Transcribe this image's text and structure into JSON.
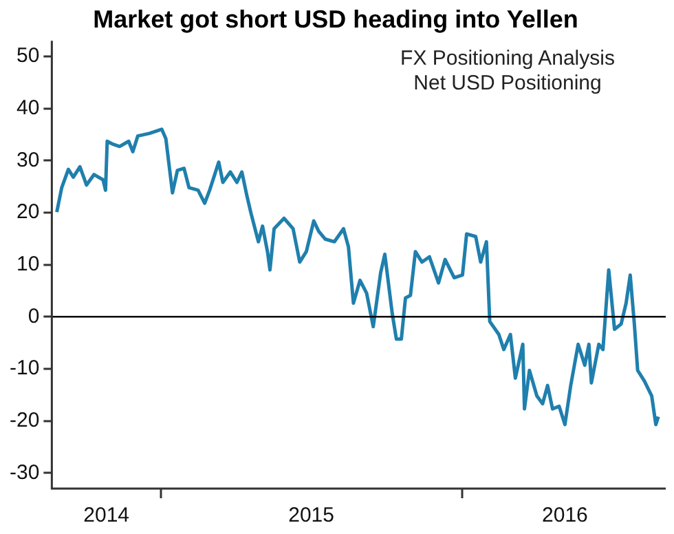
{
  "chart_data": {
    "type": "line",
    "title": "Market got short USD heading into Yellen",
    "annotations": [
      "FX Positioning Analysis",
      "Net USD Positioning"
    ],
    "x": [
      "2014-08-28",
      "2014-09-03",
      "2014-09-11",
      "2014-09-17",
      "2014-09-25",
      "2014-10-03",
      "2014-10-12",
      "2014-10-23",
      "2014-10-26",
      "2014-10-28",
      "2014-11-03",
      "2014-11-12",
      "2014-11-23",
      "2014-11-28",
      "2014-12-04",
      "2014-12-18",
      "2015-01-02",
      "2015-01-07",
      "2015-01-15",
      "2015-01-21",
      "2015-01-29",
      "2015-02-04",
      "2015-02-15",
      "2015-02-23",
      "2015-03-01",
      "2015-03-12",
      "2015-03-17",
      "2015-03-26",
      "2015-04-03",
      "2015-04-09",
      "2015-04-15",
      "2015-04-20",
      "2015-04-29",
      "2015-05-04",
      "2015-05-10",
      "2015-05-13",
      "2015-05-18",
      "2015-05-30",
      "2015-06-10",
      "2015-06-18",
      "2015-06-26",
      "2015-07-05",
      "2015-07-11",
      "2015-07-19",
      "2015-07-30",
      "2015-08-10",
      "2015-08-16",
      "2015-08-22",
      "2015-08-30",
      "2015-09-07",
      "2015-09-15",
      "2015-09-24",
      "2015-09-29",
      "2015-10-08",
      "2015-10-13",
      "2015-10-19",
      "2015-10-24",
      "2015-10-30",
      "2015-11-05",
      "2015-11-13",
      "2015-11-22",
      "2015-12-03",
      "2015-12-11",
      "2015-12-22",
      "2016-01-01",
      "2016-01-06",
      "2016-01-17",
      "2016-01-23",
      "2016-01-30",
      "2016-02-03",
      "2016-02-14",
      "2016-02-20",
      "2016-02-28",
      "2016-03-05",
      "2016-03-14",
      "2016-03-16",
      "2016-03-22",
      "2016-03-31",
      "2016-04-07",
      "2016-04-13",
      "2016-04-19",
      "2016-04-27",
      "2016-05-04",
      "2016-05-11",
      "2016-05-20",
      "2016-05-28",
      "2016-06-02",
      "2016-06-05",
      "2016-06-14",
      "2016-06-19",
      "2016-06-26",
      "2016-07-03",
      "2016-07-11",
      "2016-07-17",
      "2016-07-22",
      "2016-07-27",
      "2016-07-31",
      "2016-08-08",
      "2016-08-17",
      "2016-08-22",
      "2016-08-25"
    ],
    "series": [
      {
        "color": "#1f7fad",
        "values": [
          20.1,
          24.8,
          28.3,
          26.8,
          28.8,
          25.3,
          27.3,
          26.3,
          24.3,
          33.7,
          33.2,
          32.7,
          33.7,
          31.7,
          34.7,
          35.2,
          36.0,
          34.2,
          23.8,
          28.1,
          28.5,
          24.8,
          24.3,
          21.8,
          24.3,
          29.7,
          25.8,
          27.8,
          25.8,
          27.8,
          23.3,
          19.9,
          14.4,
          17.4,
          12.5,
          9.0,
          16.9,
          18.9,
          16.9,
          10.5,
          12.5,
          18.4,
          16.4,
          14.9,
          14.4,
          16.9,
          13.4,
          2.6,
          7.0,
          4.5,
          -1.9,
          8.5,
          12.0,
          0.6,
          -4.3,
          -4.3,
          3.6,
          4.1,
          12.5,
          10.5,
          11.5,
          6.5,
          11.0,
          7.5,
          8.0,
          15.9,
          15.4,
          10.5,
          14.4,
          -0.9,
          -3.4,
          -6.3,
          -3.4,
          -11.8,
          -5.3,
          -17.7,
          -10.3,
          -15.2,
          -16.7,
          -13.2,
          -17.7,
          -17.2,
          -20.7,
          -13.2,
          -5.3,
          -9.3,
          -5.3,
          -12.7,
          -5.3,
          -6.3,
          9.0,
          -2.4,
          -1.4,
          2.6,
          8.0,
          -1.4,
          -10.3,
          -12.3,
          -15.2,
          -20.7,
          -19.2
        ]
      }
    ],
    "xlim": [
      "2014-08-22",
      "2016-09-03"
    ],
    "xticks": [
      {
        "value": "2014-10-27",
        "label": "2014"
      },
      {
        "value": "2015-01-01",
        "label": null
      },
      {
        "value": "2015-07-02",
        "label": "2015"
      },
      {
        "value": "2016-01-01",
        "label": null
      },
      {
        "value": "2016-05-04",
        "label": "2016"
      }
    ],
    "ylim": [
      -33,
      53
    ],
    "yticks": [
      -30,
      -20,
      -10,
      0,
      10,
      20,
      30,
      40,
      50
    ],
    "ref_lines": [
      {
        "axis": "y",
        "value": 0,
        "color": "#000000"
      }
    ],
    "grid": false,
    "legend": false,
    "marker": "none",
    "line_style": "solid"
  }
}
